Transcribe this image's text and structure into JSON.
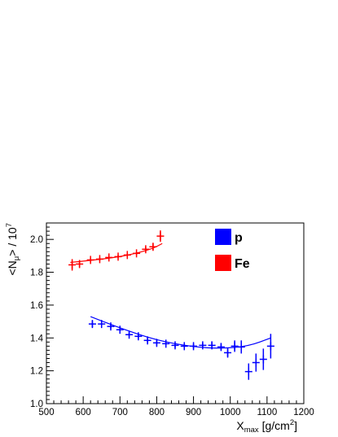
{
  "chart_data": {
    "type": "scatter",
    "xlabel": "X_max [g/cm^2]",
    "ylabel": "<N_μ> / 10^7",
    "xlim": [
      500,
      1200
    ],
    "ylim": [
      1.0,
      2.1
    ],
    "x_ticks": [
      "500",
      "600",
      "700",
      "800",
      "900",
      "1000",
      "1100",
      "1200"
    ],
    "y_ticks": [
      "1.0",
      "1.2",
      "1.4",
      "1.6",
      "1.8",
      "2.0"
    ],
    "legend_position": "top-right",
    "series": [
      {
        "name": "p",
        "color": "#0000ff",
        "points": [
          {
            "x": 625,
            "y": 1.485,
            "xerr": 10,
            "yerr": 0.015
          },
          {
            "x": 650,
            "y": 1.485,
            "xerr": 10,
            "yerr": 0.01
          },
          {
            "x": 675,
            "y": 1.47,
            "xerr": 10,
            "yerr": 0.01
          },
          {
            "x": 700,
            "y": 1.45,
            "xerr": 10,
            "yerr": 0.01
          },
          {
            "x": 725,
            "y": 1.42,
            "xerr": 10,
            "yerr": 0.01
          },
          {
            "x": 750,
            "y": 1.41,
            "xerr": 10,
            "yerr": 0.01
          },
          {
            "x": 775,
            "y": 1.385,
            "xerr": 10,
            "yerr": 0.01
          },
          {
            "x": 800,
            "y": 1.37,
            "xerr": 10,
            "yerr": 0.01
          },
          {
            "x": 825,
            "y": 1.365,
            "xerr": 10,
            "yerr": 0.01
          },
          {
            "x": 850,
            "y": 1.355,
            "xerr": 10,
            "yerr": 0.01
          },
          {
            "x": 875,
            "y": 1.35,
            "xerr": 10,
            "yerr": 0.01
          },
          {
            "x": 900,
            "y": 1.35,
            "xerr": 10,
            "yerr": 0.01
          },
          {
            "x": 925,
            "y": 1.355,
            "xerr": 10,
            "yerr": 0.01
          },
          {
            "x": 950,
            "y": 1.355,
            "xerr": 10,
            "yerr": 0.015
          },
          {
            "x": 975,
            "y": 1.345,
            "xerr": 10,
            "yerr": 0.015
          },
          {
            "x": 993,
            "y": 1.31,
            "xerr": 10,
            "yerr": 0.025
          },
          {
            "x": 1012,
            "y": 1.35,
            "xerr": 10,
            "yerr": 0.03
          },
          {
            "x": 1030,
            "y": 1.345,
            "xerr": 10,
            "yerr": 0.035
          },
          {
            "x": 1050,
            "y": 1.195,
            "xerr": 10,
            "yerr": 0.045
          },
          {
            "x": 1070,
            "y": 1.25,
            "xerr": 10,
            "yerr": 0.05
          },
          {
            "x": 1090,
            "y": 1.27,
            "xerr": 10,
            "yerr": 0.06
          },
          {
            "x": 1110,
            "y": 1.35,
            "xerr": 10,
            "yerr": 0.07
          }
        ],
        "fit_curve": [
          {
            "x": 620,
            "y": 1.53
          },
          {
            "x": 700,
            "y": 1.46
          },
          {
            "x": 800,
            "y": 1.385
          },
          {
            "x": 900,
            "y": 1.345
          },
          {
            "x": 975,
            "y": 1.335
          },
          {
            "x": 1050,
            "y": 1.35
          },
          {
            "x": 1110,
            "y": 1.4
          }
        ]
      },
      {
        "name": "Fe",
        "color": "#ff0000",
        "points": [
          {
            "x": 570,
            "y": 1.845,
            "xerr": 10,
            "yerr": 0.03
          },
          {
            "x": 590,
            "y": 1.85,
            "xerr": 10,
            "yerr": 0.015
          },
          {
            "x": 620,
            "y": 1.875,
            "xerr": 10,
            "yerr": 0.005
          },
          {
            "x": 645,
            "y": 1.88,
            "xerr": 10,
            "yerr": 0.005
          },
          {
            "x": 670,
            "y": 1.89,
            "xerr": 10,
            "yerr": 0.005
          },
          {
            "x": 695,
            "y": 1.895,
            "xerr": 10,
            "yerr": 0.005
          },
          {
            "x": 720,
            "y": 1.905,
            "xerr": 10,
            "yerr": 0.005
          },
          {
            "x": 745,
            "y": 1.915,
            "xerr": 10,
            "yerr": 0.005
          },
          {
            "x": 770,
            "y": 1.94,
            "xerr": 10,
            "yerr": 0.01
          },
          {
            "x": 790,
            "y": 1.955,
            "xerr": 10,
            "yerr": 0.015
          },
          {
            "x": 810,
            "y": 2.02,
            "xerr": 10,
            "yerr": 0.03
          }
        ],
        "fit_curve": [
          {
            "x": 565,
            "y": 1.86
          },
          {
            "x": 620,
            "y": 1.872
          },
          {
            "x": 680,
            "y": 1.888
          },
          {
            "x": 740,
            "y": 1.912
          },
          {
            "x": 790,
            "y": 1.945
          },
          {
            "x": 815,
            "y": 1.975
          }
        ]
      }
    ]
  }
}
